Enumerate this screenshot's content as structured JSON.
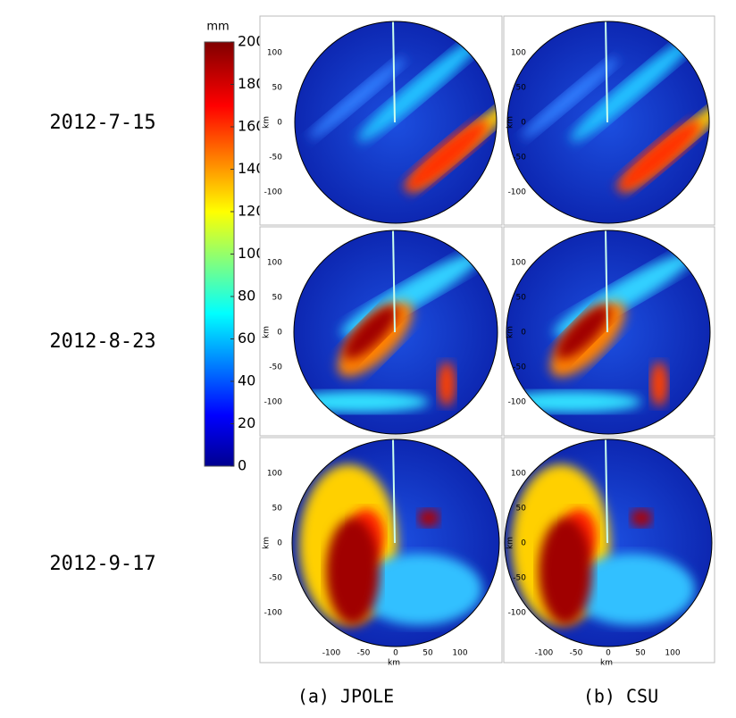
{
  "colorbar": {
    "unit": "mm",
    "ticks": [
      0,
      20,
      40,
      60,
      80,
      100,
      120,
      140,
      160,
      180,
      200
    ]
  },
  "rows": [
    {
      "label": "2012-7-15"
    },
    {
      "label": "2012-8-23"
    },
    {
      "label": "2012-9-17"
    }
  ],
  "columns": [
    {
      "label": "(a) JPOLE"
    },
    {
      "label": "(b) CSU"
    }
  ],
  "axes": {
    "x_label": "km",
    "y_label": "km",
    "xticks": [
      -100,
      -50,
      0,
      50,
      100
    ],
    "yticks": [
      100,
      50,
      0,
      -50,
      -100
    ]
  }
}
